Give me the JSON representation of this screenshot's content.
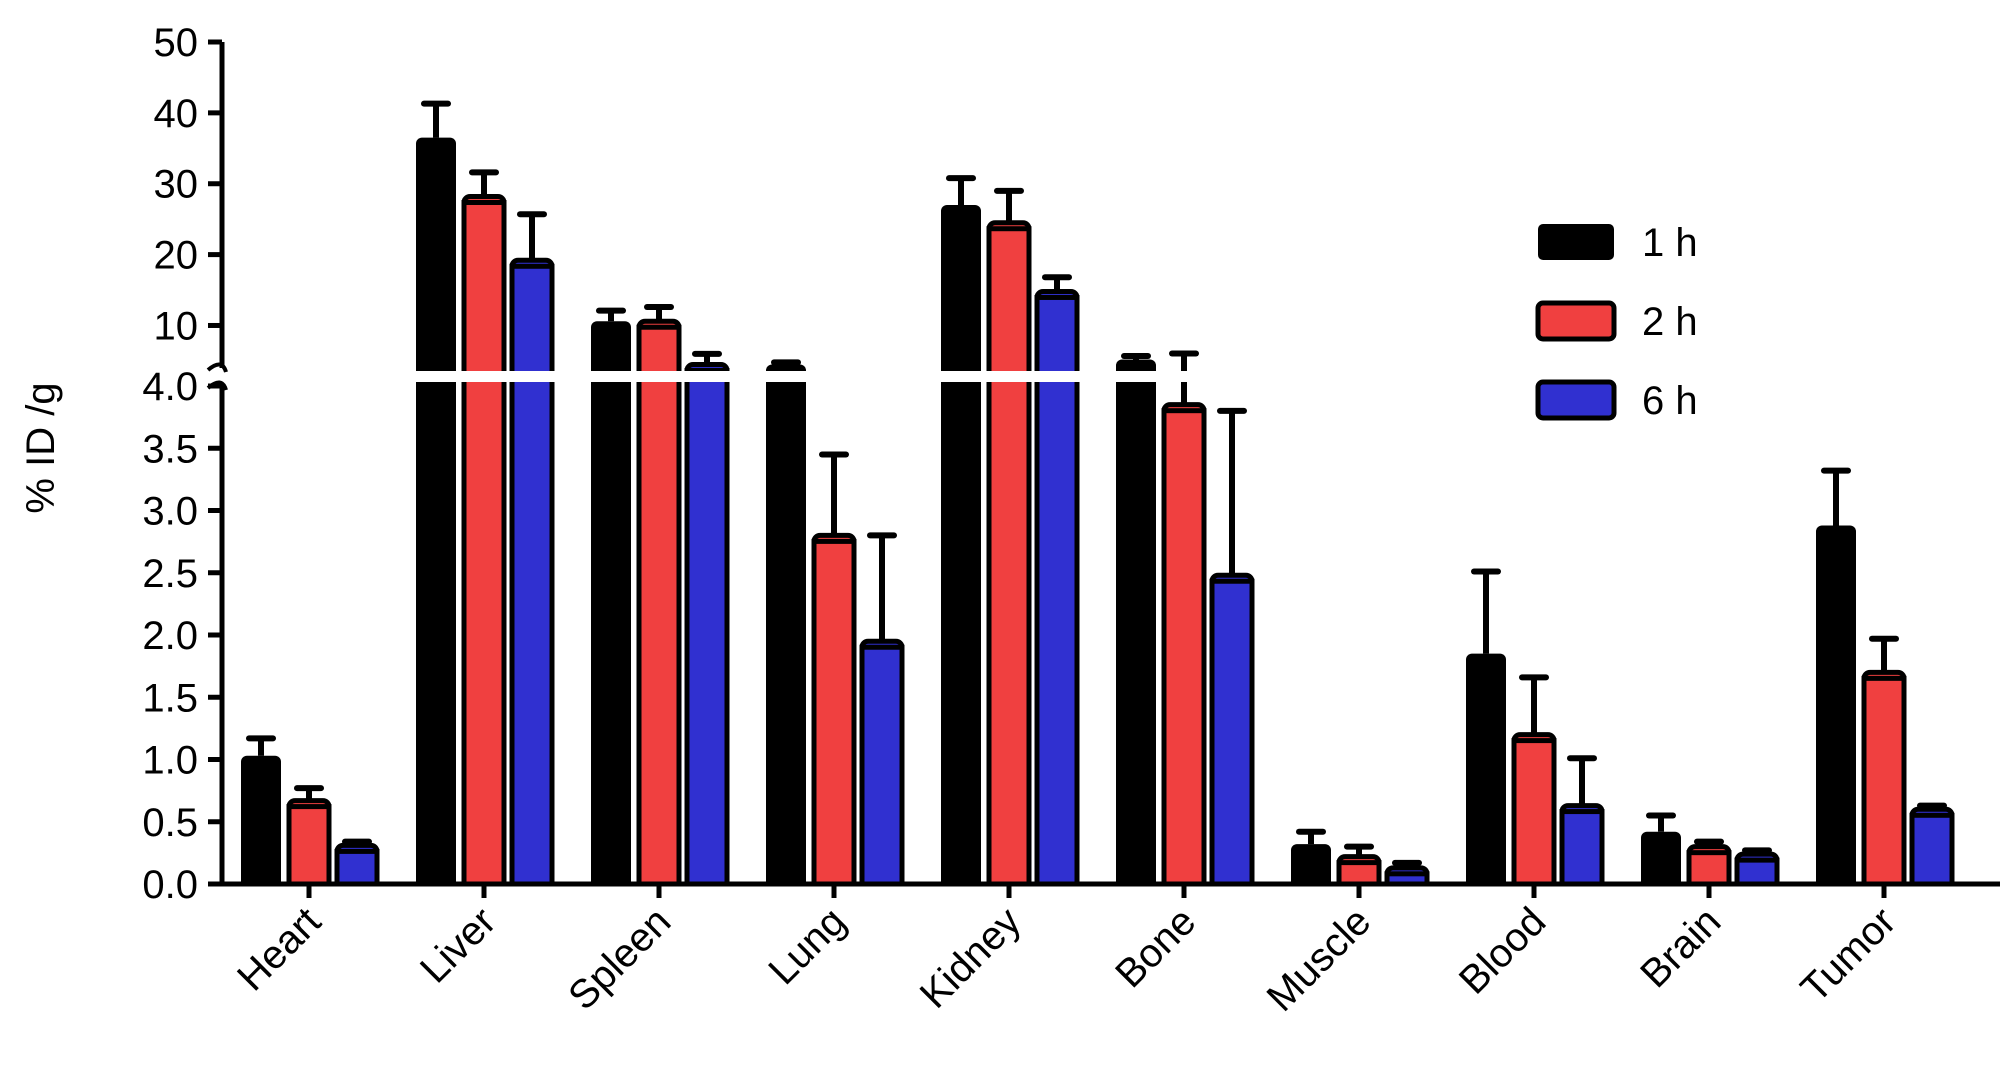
{
  "chart_data": {
    "type": "bar",
    "ylabel": "% ID /g",
    "categories": [
      "Heart",
      "Liver",
      "Spleen",
      "Lung",
      "Kidney",
      "Bone",
      "Muscle",
      "Blood",
      "Brain",
      "Tumor"
    ],
    "series": [
      {
        "name": "1 h",
        "color": "#000000",
        "values": [
          1.03,
          36.5,
          10.6,
          4.5,
          27.0,
          5.2,
          0.32,
          1.85,
          0.42,
          2.88
        ],
        "errors": [
          0.14,
          4.8,
          1.5,
          0.3,
          3.8,
          0.5,
          0.1,
          0.66,
          0.13,
          0.44
        ]
      },
      {
        "name": "2 h",
        "color": "#f04040",
        "values": [
          0.67,
          28.2,
          10.6,
          2.8,
          24.5,
          3.85,
          0.22,
          1.2,
          0.3,
          1.7
        ],
        "errors": [
          0.1,
          3.4,
          2.0,
          0.65,
          4.5,
          2.2,
          0.08,
          0.46,
          0.04,
          0.27
        ]
      },
      {
        "name": "6 h",
        "color": "#3030d0",
        "values": [
          0.31,
          19.2,
          4.5,
          1.95,
          14.8,
          2.48,
          0.13,
          0.63,
          0.24,
          0.6
        ],
        "errors": [
          0.03,
          6.5,
          1.5,
          0.85,
          2.0,
          1.32,
          0.04,
          0.38,
          0.03,
          0.03
        ]
      }
    ],
    "y_axis": {
      "broken": true,
      "lower_range": [
        0,
        4.0
      ],
      "lower_ticks": [
        "0.0",
        "0.5",
        "1.0",
        "1.5",
        "2.0",
        "2.5",
        "3.0",
        "3.5",
        "4.0"
      ],
      "upper_range": [
        4.0,
        50
      ],
      "upper_ticks": [
        "10",
        "20",
        "30",
        "40",
        "50"
      ]
    },
    "legend_position": "top-right",
    "grid": false
  }
}
